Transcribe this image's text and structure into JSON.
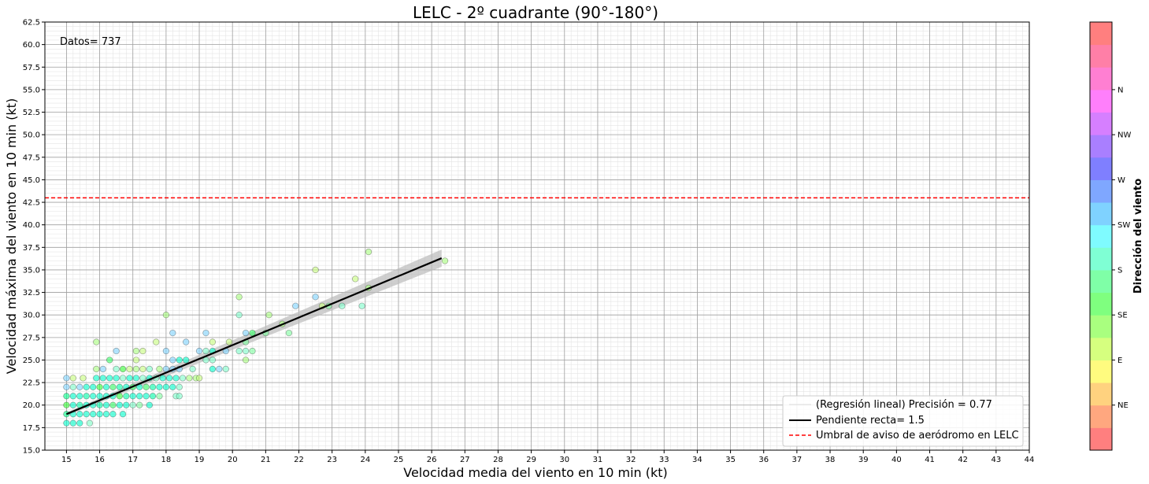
{
  "chart_data": {
    "type": "scatter",
    "title": "LELC - 2º cuadrante (90°-180°)",
    "xlabel": "Velocidad media del viento en 10 min (kt)",
    "ylabel": "Velocidad máxima del viento en 10 min (kt)",
    "xlim": [
      14.35,
      44.0
    ],
    "ylim": [
      15.0,
      62.5
    ],
    "x_ticks": [
      "15",
      "16",
      "17",
      "18",
      "19",
      "20",
      "21",
      "22",
      "23",
      "24",
      "25",
      "26",
      "27",
      "28",
      "29",
      "30",
      "31",
      "32",
      "33",
      "34",
      "35",
      "36",
      "37",
      "38",
      "39",
      "40",
      "41",
      "42",
      "43",
      "44"
    ],
    "y_ticks": [
      "15.0",
      "17.5",
      "20.0",
      "22.5",
      "25.0",
      "27.5",
      "30.0",
      "32.5",
      "35.0",
      "37.5",
      "40.0",
      "42.5",
      "45.0",
      "47.5",
      "50.0",
      "52.5",
      "55.0",
      "57.5",
      "60.0",
      "62.5"
    ],
    "grid": true,
    "annotation": "Datos= 737",
    "threshold": {
      "y": 43.0,
      "color": "#ff0000",
      "label": "Umbral de aviso de aeródromo en LELC"
    },
    "regression": {
      "label_fit": "(Regresión lineal) Precisión = 0.77",
      "label_slope": "Pendiente recta= 1.5",
      "x": [
        15.0,
        26.3
      ],
      "y": [
        19.0,
        36.3
      ],
      "band": 0.6
    },
    "legend_placement": "lower-right",
    "colorbar": {
      "label": "Dirección del viento",
      "ticks": [
        "NE",
        "E",
        "SE",
        "S",
        "SW",
        "W",
        "NW",
        "N"
      ],
      "colors": [
        "#ff7f7f",
        "#ffa77f",
        "#ffd27f",
        "#fffb7f",
        "#d6ff7f",
        "#a9ff7f",
        "#7fff7f",
        "#7fffa7",
        "#7fffd4",
        "#7ffbff",
        "#7fd2ff",
        "#7fa7ff",
        "#7f7fff",
        "#a97fff",
        "#d67fff",
        "#ff7ffb",
        "#ff7fd2",
        "#ff7fa7",
        "#ff7f7f"
      ]
    },
    "points": [
      [
        15,
        18,
        "#00ffcc"
      ],
      [
        15.2,
        18,
        "#00ffcc"
      ],
      [
        15.4,
        18,
        "#00ffcc"
      ],
      [
        15.7,
        18,
        "#7fffc8"
      ],
      [
        15,
        19,
        "#00ff88"
      ],
      [
        15.2,
        19,
        "#00ffcc"
      ],
      [
        15.4,
        19,
        "#00ffcc"
      ],
      [
        15.6,
        19,
        "#00ffcc"
      ],
      [
        15.8,
        19,
        "#00ffcc"
      ],
      [
        16,
        19,
        "#00ffcc"
      ],
      [
        16.2,
        19,
        "#00ffcc"
      ],
      [
        16.4,
        19,
        "#00ffcc"
      ],
      [
        16.7,
        19,
        "#00ffcc"
      ],
      [
        15,
        20,
        "#33ff33"
      ],
      [
        15.2,
        20,
        "#00ffcc"
      ],
      [
        15.4,
        20,
        "#00ffaa"
      ],
      [
        15.6,
        20,
        "#00ffcc"
      ],
      [
        15.8,
        20,
        "#00ffcc"
      ],
      [
        16,
        20,
        "#00ffaa"
      ],
      [
        16.2,
        20,
        "#00ffcc"
      ],
      [
        16.4,
        20,
        "#33ff66"
      ],
      [
        16.6,
        20,
        "#00ffcc"
      ],
      [
        16.8,
        20,
        "#00ffcc"
      ],
      [
        17,
        20,
        "#7fffcc"
      ],
      [
        17.2,
        20,
        "#7fffa0"
      ],
      [
        17.5,
        20,
        "#00ffcc"
      ],
      [
        15,
        21,
        "#00ff88"
      ],
      [
        15.2,
        21,
        "#00ffcc"
      ],
      [
        15.4,
        21,
        "#00ffcc"
      ],
      [
        15.6,
        21,
        "#00ffaa"
      ],
      [
        15.8,
        21,
        "#00ffcc"
      ],
      [
        16,
        21,
        "#00ffcc"
      ],
      [
        16.2,
        21,
        "#00ffcc"
      ],
      [
        16.4,
        21,
        "#00ffcc"
      ],
      [
        16.6,
        21,
        "#33ff33"
      ],
      [
        16.8,
        21,
        "#00ffaa"
      ],
      [
        17,
        21,
        "#00ffcc"
      ],
      [
        17.2,
        21,
        "#00ffcc"
      ],
      [
        17.4,
        21,
        "#00ffcc"
      ],
      [
        17.6,
        21,
        "#00ffaa"
      ],
      [
        17.8,
        21,
        "#7fffa0"
      ],
      [
        18.3,
        21,
        "#7fffcc"
      ],
      [
        18.4,
        21,
        "#7fffcc"
      ],
      [
        15,
        22,
        "#7fd4ff"
      ],
      [
        15.2,
        22,
        "#7fffcc"
      ],
      [
        15.4,
        22,
        "#7fd4ff"
      ],
      [
        15.6,
        22,
        "#00ffcc"
      ],
      [
        15.8,
        22,
        "#00ffcc"
      ],
      [
        16,
        22,
        "#33ff33"
      ],
      [
        16.2,
        22,
        "#00ffcc"
      ],
      [
        16.4,
        22,
        "#33ff66"
      ],
      [
        16.6,
        22,
        "#00ffaa"
      ],
      [
        16.8,
        22,
        "#00ffcc"
      ],
      [
        17,
        22,
        "#33ff66"
      ],
      [
        17.2,
        22,
        "#00ffcc"
      ],
      [
        17.4,
        22,
        "#33ff66"
      ],
      [
        17.6,
        22,
        "#00ffaa"
      ],
      [
        17.8,
        22,
        "#00ffcc"
      ],
      [
        18,
        22,
        "#00ffcc"
      ],
      [
        18.2,
        22,
        "#00ffcc"
      ],
      [
        18.4,
        22,
        "#7fffcc"
      ],
      [
        15,
        23,
        "#7fd4ff"
      ],
      [
        15.2,
        23,
        "#c8ff7f"
      ],
      [
        15.5,
        23,
        "#c8ff7f"
      ],
      [
        15.9,
        23,
        "#00ffcc"
      ],
      [
        16.1,
        23,
        "#00ffcc"
      ],
      [
        16.3,
        23,
        "#00ffcc"
      ],
      [
        16.5,
        23,
        "#00ffcc"
      ],
      [
        16.7,
        23,
        "#7fffcc"
      ],
      [
        16.9,
        23,
        "#00ffcc"
      ],
      [
        17.1,
        23,
        "#00ffcc"
      ],
      [
        17.3,
        23,
        "#7fffcc"
      ],
      [
        17.5,
        23,
        "#00ffcc"
      ],
      [
        17.7,
        23,
        "#7fffcc"
      ],
      [
        17.9,
        23,
        "#00ffcc"
      ],
      [
        18.1,
        23,
        "#00ffcc"
      ],
      [
        18.3,
        23,
        "#00ffcc"
      ],
      [
        18.5,
        23,
        "#7fffcc"
      ],
      [
        18.7,
        23,
        "#a9ff7f"
      ],
      [
        18.9,
        23,
        "#a9ff7f"
      ],
      [
        19,
        23,
        "#c8ff7f"
      ],
      [
        15.9,
        24,
        "#a9ff7f"
      ],
      [
        16.1,
        24,
        "#7fd4ff"
      ],
      [
        16.5,
        24,
        "#7fffcc"
      ],
      [
        16.7,
        24,
        "#33ff33"
      ],
      [
        16.9,
        24,
        "#c8ff7f"
      ],
      [
        17.1,
        24,
        "#a9ff7f"
      ],
      [
        17.3,
        24,
        "#c8ff7f"
      ],
      [
        17.5,
        24,
        "#7fffcc"
      ],
      [
        17.8,
        24,
        "#a9ff7f"
      ],
      [
        18,
        24,
        "#7fd4ff"
      ],
      [
        18.2,
        24,
        "#7fd4ff"
      ],
      [
        18.4,
        24,
        "#7fd4ff"
      ],
      [
        18.8,
        24,
        "#7fffcc"
      ],
      [
        19.4,
        24,
        "#00ffcc"
      ],
      [
        19.6,
        24,
        "#7fd4ff"
      ],
      [
        19.8,
        24,
        "#7fffcc"
      ],
      [
        16.3,
        25,
        "#33ff66"
      ],
      [
        17.1,
        25,
        "#c8ff7f"
      ],
      [
        18.2,
        25,
        "#7fd4ff"
      ],
      [
        18.4,
        25,
        "#00ffcc"
      ],
      [
        18.6,
        25,
        "#00ffcc"
      ],
      [
        19.2,
        25,
        "#7fffcc"
      ],
      [
        19.4,
        25,
        "#7fffcc"
      ],
      [
        20.4,
        25,
        "#a9ff7f"
      ],
      [
        16.5,
        26,
        "#7fd4ff"
      ],
      [
        17.1,
        26,
        "#a9ff7f"
      ],
      [
        17.3,
        26,
        "#c8ff7f"
      ],
      [
        18,
        26,
        "#7fd4ff"
      ],
      [
        19,
        26,
        "#7fd4ff"
      ],
      [
        19.2,
        26,
        "#7fffcc"
      ],
      [
        19.4,
        26,
        "#00ffcc"
      ],
      [
        19.8,
        26,
        "#7fd4ff"
      ],
      [
        20.2,
        26,
        "#7fffcc"
      ],
      [
        20.4,
        26,
        "#7fffcc"
      ],
      [
        20.6,
        26,
        "#7fffa0"
      ],
      [
        15.9,
        27,
        "#a9ff7f"
      ],
      [
        17.7,
        27,
        "#c8ff7f"
      ],
      [
        18.6,
        27,
        "#7fd4ff"
      ],
      [
        19.4,
        27,
        "#c8ff7f"
      ],
      [
        19.9,
        27,
        "#c8ff7f"
      ],
      [
        20.4,
        27,
        "#7fffa0"
      ],
      [
        18.2,
        28,
        "#7fd4ff"
      ],
      [
        19.2,
        28,
        "#7fd4ff"
      ],
      [
        20.4,
        28,
        "#7fd4ff"
      ],
      [
        20.6,
        28,
        "#33ff66"
      ],
      [
        21.0,
        28,
        "#7fffa0"
      ],
      [
        21.7,
        28,
        "#7fffa0"
      ],
      [
        21.5,
        29,
        "#a9ff7f"
      ],
      [
        18,
        30,
        "#a9ff7f"
      ],
      [
        20.2,
        30,
        "#7fffcc"
      ],
      [
        21.1,
        30,
        "#a9ff7f"
      ],
      [
        21.9,
        31,
        "#7fd4ff"
      ],
      [
        22.7,
        31,
        "#c8ff7f"
      ],
      [
        22.9,
        31,
        "#7fffa0"
      ],
      [
        23.3,
        31,
        "#7fffcc"
      ],
      [
        23.9,
        31,
        "#7fffcc"
      ],
      [
        20.2,
        32,
        "#a9ff7f"
      ],
      [
        22.5,
        32,
        "#7fd4ff"
      ],
      [
        24.1,
        33,
        "#a9ff7f"
      ],
      [
        23.7,
        34,
        "#c8ff7f"
      ],
      [
        22.5,
        35,
        "#c8ff7f"
      ],
      [
        26.4,
        36,
        "#a9ff7f"
      ],
      [
        24.1,
        37,
        "#a9ff7f"
      ]
    ]
  }
}
